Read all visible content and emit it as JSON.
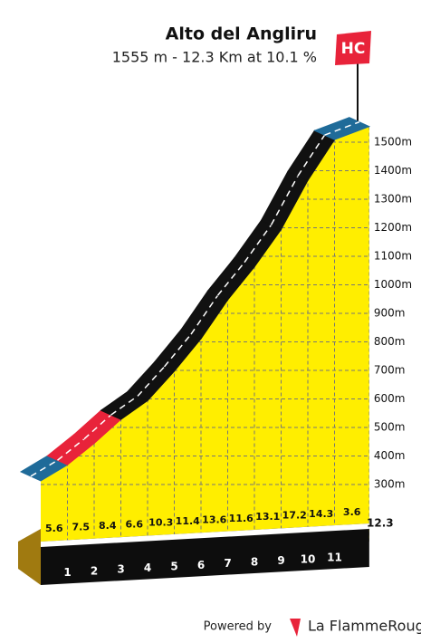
{
  "chart_data": {
    "type": "climb-profile",
    "title": "Alto del Angliru",
    "subtitle": "1555 m - 12.3 Km at 10.1 %",
    "badge": "HC",
    "x": [
      0,
      1,
      2,
      3,
      4,
      5,
      6,
      7,
      8,
      9,
      10,
      11,
      12.3
    ],
    "elevations": [
      313,
      369,
      444,
      528,
      594,
      697,
      811,
      947,
      1063,
      1194,
      1366,
      1509,
      1555
    ],
    "gradients": [
      5.6,
      7.5,
      8.4,
      6.6,
      10.3,
      11.4,
      13.6,
      11.6,
      13.1,
      17.2,
      14.3,
      3.6
    ],
    "segment_colors": [
      "#1f6b99",
      "#e8233a",
      "#e8233a",
      "#111111",
      "#111111",
      "#111111",
      "#111111",
      "#111111",
      "#111111",
      "#111111",
      "#111111",
      "#1f6b99"
    ],
    "xticks": [
      1,
      2,
      3,
      4,
      5,
      6,
      7,
      8,
      9,
      10,
      11,
      12.3
    ],
    "xlim": [
      0,
      12.3
    ],
    "ylim": [
      100,
      1600
    ],
    "yticks": [
      {
        "value": 300,
        "label": "300m"
      },
      {
        "value": 400,
        "label": "400m"
      },
      {
        "value": 500,
        "label": "500m"
      },
      {
        "value": 600,
        "label": "600m"
      },
      {
        "value": 700,
        "label": "700m"
      },
      {
        "value": 800,
        "label": "800m"
      },
      {
        "value": 900,
        "label": "900m"
      },
      {
        "value": 1000,
        "label": "1000m"
      },
      {
        "value": 1100,
        "label": "1100m"
      },
      {
        "value": 1200,
        "label": "1200m"
      },
      {
        "value": 1300,
        "label": "1300m"
      },
      {
        "value": 1400,
        "label": "1400m"
      },
      {
        "value": 1500,
        "label": "1500m"
      }
    ],
    "fill_color": "#ffee00",
    "grid": true,
    "footer": {
      "powered": "Powered by",
      "brand": "La FlammeRouge"
    }
  }
}
